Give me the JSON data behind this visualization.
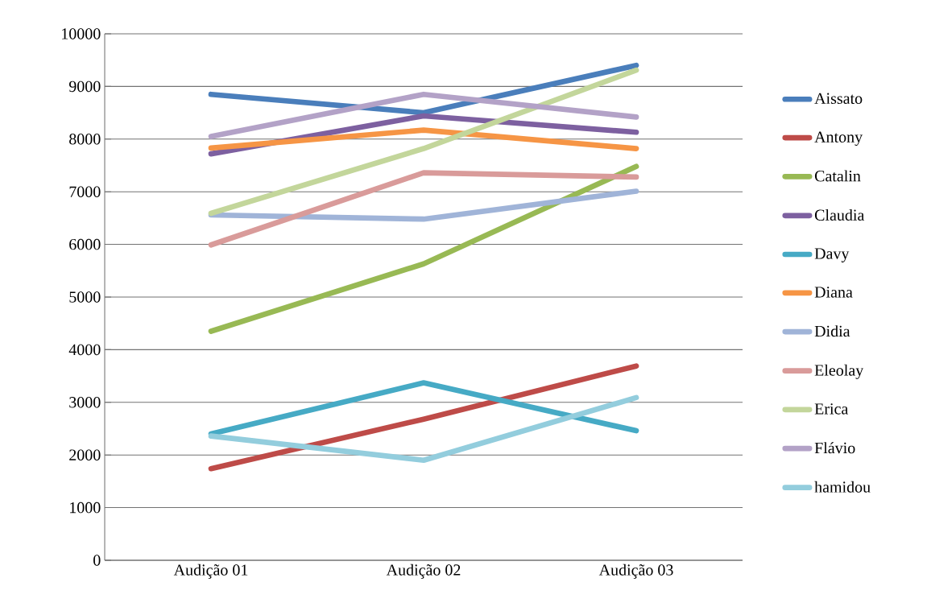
{
  "chart_data": {
    "type": "line",
    "categories": [
      "Audição 01",
      "Audição 02",
      "Audição 03"
    ],
    "series": [
      {
        "name": "Aissato",
        "color": "#4a7ebb",
        "values": [
          8850,
          8500,
          9400
        ]
      },
      {
        "name": "Antony",
        "color": "#be4b48",
        "values": [
          1740,
          2680,
          3690
        ]
      },
      {
        "name": "Catalin",
        "color": "#98b954",
        "values": [
          4350,
          5630,
          7480
        ]
      },
      {
        "name": "Claudia",
        "color": "#7d60a0",
        "values": [
          7720,
          8440,
          8130
        ]
      },
      {
        "name": "Davy",
        "color": "#46aac5",
        "values": [
          2400,
          3370,
          2460
        ]
      },
      {
        "name": "Diana",
        "color": "#f69545",
        "values": [
          7830,
          8170,
          7820
        ]
      },
      {
        "name": "Didia",
        "color": "#a0b4d8",
        "values": [
          6560,
          6480,
          7010
        ]
      },
      {
        "name": "Eleolay",
        "color": "#d99b9a",
        "values": [
          5990,
          7360,
          7280
        ]
      },
      {
        "name": "Erica",
        "color": "#c3d69b",
        "values": [
          6590,
          7820,
          9310
        ]
      },
      {
        "name": "Flávio",
        "color": "#b3a2c7",
        "values": [
          8050,
          8850,
          8420
        ]
      },
      {
        "name": "hamidou",
        "color": "#93cddd",
        "values": [
          2360,
          1900,
          3090
        ]
      }
    ],
    "ylim": [
      0,
      10000
    ],
    "yticks": [
      0,
      1000,
      2000,
      3000,
      4000,
      5000,
      6000,
      7000,
      8000,
      9000,
      10000
    ],
    "grid": "y",
    "legend": "right"
  }
}
